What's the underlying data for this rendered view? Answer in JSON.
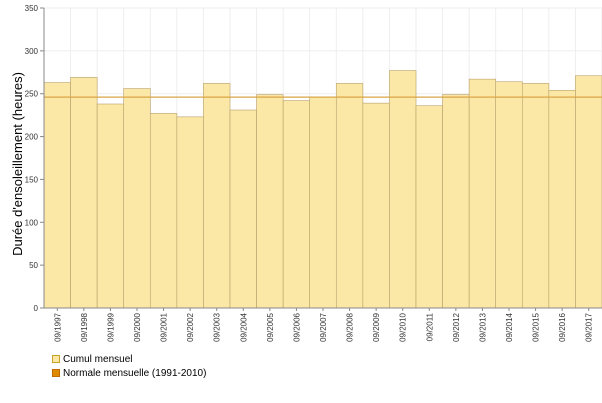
{
  "chart_data": {
    "type": "bar",
    "title": "",
    "ylabel": "Durée d'ensoleillement (heures)",
    "xlabel": "",
    "ylim": [
      0,
      350
    ],
    "yticks": [
      0,
      50,
      100,
      150,
      200,
      250,
      300,
      350
    ],
    "grid": true,
    "categories": [
      "09/1997",
      "09/1998",
      "09/1999",
      "09/2000",
      "09/2001",
      "09/2002",
      "09/2003",
      "09/2004",
      "09/2005",
      "09/2006",
      "09/2007",
      "09/2008",
      "09/2009",
      "09/2010",
      "09/2011",
      "09/2012",
      "09/2013",
      "09/2014",
      "09/2015",
      "09/2016",
      "09/2017"
    ],
    "series": [
      {
        "name": "Cumul mensuel",
        "type": "bar",
        "color": "#fbe8a6",
        "values": [
          263,
          269,
          238,
          256,
          227,
          223,
          262,
          231,
          249,
          242,
          246,
          262,
          239,
          277,
          236,
          249,
          267,
          264,
          262,
          254,
          271
        ]
      },
      {
        "name": "Normale mensuelle (1991-2010)",
        "type": "line",
        "color": "#e08a00",
        "value": 246
      }
    ],
    "legend_position": "bottom-left"
  },
  "colors": {
    "bar_fill": "#fbe8a6",
    "bar_stroke": "#b8a06a",
    "normal_line": "#d9a545",
    "grid": "#eeeeee",
    "legend_bar": "#fbe8a6",
    "legend_normal": "#e08a00"
  }
}
